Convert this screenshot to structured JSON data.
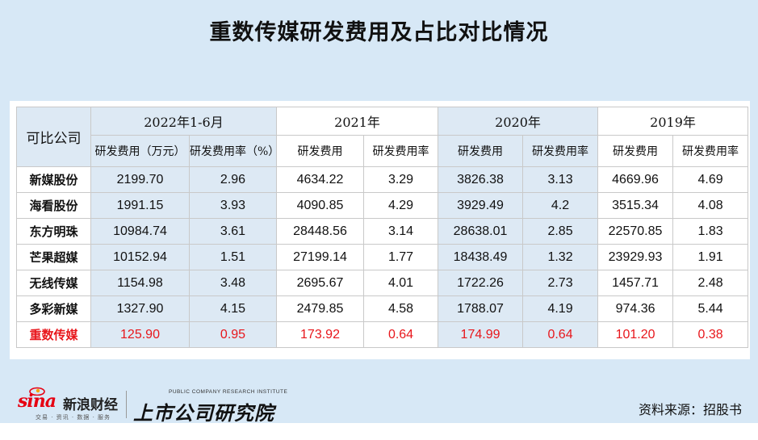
{
  "title": "重数传媒研发费用及占比对比情况",
  "table": {
    "company_header": "可比公司",
    "periods": [
      "2022年1-6月",
      "2021年",
      "2020年",
      "2019年"
    ],
    "sub_headers": [
      "研发费用（万元）",
      "研发费用率（%）",
      "研发费用",
      "研发费用率",
      "研发费用",
      "研发费用率",
      "研发费用",
      "研发费用率"
    ],
    "rows": [
      {
        "company": "新媒股份",
        "values": [
          "2199.70",
          "2.96",
          "4634.22",
          "3.29",
          "3826.38",
          "3.13",
          "4669.96",
          "4.69"
        ]
      },
      {
        "company": "海看股份",
        "values": [
          "1991.15",
          "3.93",
          "4090.85",
          "4.29",
          "3929.49",
          "4.2",
          "3515.34",
          "4.08"
        ]
      },
      {
        "company": "东方明珠",
        "values": [
          "10984.74",
          "3.61",
          "28448.56",
          "3.14",
          "28638.01",
          "2.85",
          "22570.85",
          "1.83"
        ]
      },
      {
        "company": "芒果超媒",
        "values": [
          "10152.94",
          "1.51",
          "27199.14",
          "1.77",
          "18438.49",
          "1.32",
          "23929.93",
          "1.91"
        ]
      },
      {
        "company": "无线传媒",
        "values": [
          "1154.98",
          "3.48",
          "2695.67",
          "4.01",
          "1722.26",
          "2.73",
          "1457.71",
          "2.48"
        ]
      },
      {
        "company": "多彩新媒",
        "values": [
          "1327.90",
          "4.15",
          "2479.85",
          "4.58",
          "1788.07",
          "4.19",
          "974.36",
          "5.44"
        ]
      },
      {
        "company": "重数传媒",
        "values": [
          "125.90",
          "0.95",
          "173.92",
          "0.64",
          "174.99",
          "0.64",
          "101.20",
          "0.38"
        ],
        "highlight": true
      }
    ],
    "highlight_color": "#e8161b",
    "band_color": "#dde9f4"
  },
  "footer": {
    "sina_brand": "sina",
    "sina_name": "新浪财经",
    "sina_tagline": "交易 · 资讯 · 数据 · 服务",
    "institute_en": "PUBLIC COMPANY RESEARCH INSTITUTE",
    "institute_cn": "上市公司研究院",
    "source": "资料来源：招股书"
  }
}
